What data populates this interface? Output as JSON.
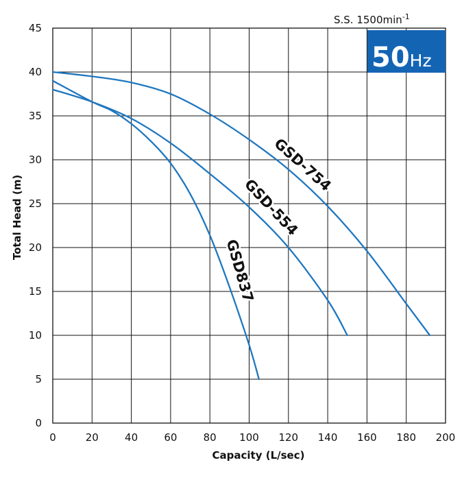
{
  "chart_data": {
    "type": "line",
    "title": "",
    "xlabel": "Capacity (L/sec)",
    "ylabel": "Total Head (m)",
    "xlim": [
      0,
      200
    ],
    "ylim": [
      0,
      45
    ],
    "xticks": [
      0,
      20,
      40,
      60,
      80,
      100,
      120,
      140,
      160,
      180,
      200
    ],
    "yticks": [
      0,
      5,
      10,
      15,
      20,
      25,
      30,
      35,
      40,
      45
    ],
    "grid": true,
    "line_color": "#1f77bf",
    "speed_label": "S.S. 1500min",
    "speed_superscript": "-1",
    "frequency_badge": {
      "number": "50",
      "unit": "Hz",
      "color": "#1464b4"
    },
    "series": [
      {
        "name": "GSD-754",
        "x": [
          0,
          20,
          40,
          60,
          80,
          100,
          120,
          140,
          160,
          180,
          192
        ],
        "y": [
          40,
          39.5,
          38.8,
          37.5,
          35.2,
          32.3,
          28.9,
          24.7,
          19.6,
          13.6,
          10
        ]
      },
      {
        "name": "GSD-554",
        "x": [
          0,
          20,
          40,
          60,
          80,
          100,
          120,
          140,
          150
        ],
        "y": [
          38,
          36.6,
          34.7,
          31.9,
          28.4,
          24.6,
          20,
          14,
          10
        ]
      },
      {
        "name": "GSD837",
        "x": [
          0,
          20,
          30,
          40,
          50,
          60,
          70,
          80,
          90,
          100,
          105
        ],
        "y": [
          39,
          36.6,
          35.6,
          34.1,
          32.1,
          29.6,
          26.1,
          21.4,
          15.5,
          8.9,
          5
        ]
      }
    ]
  }
}
